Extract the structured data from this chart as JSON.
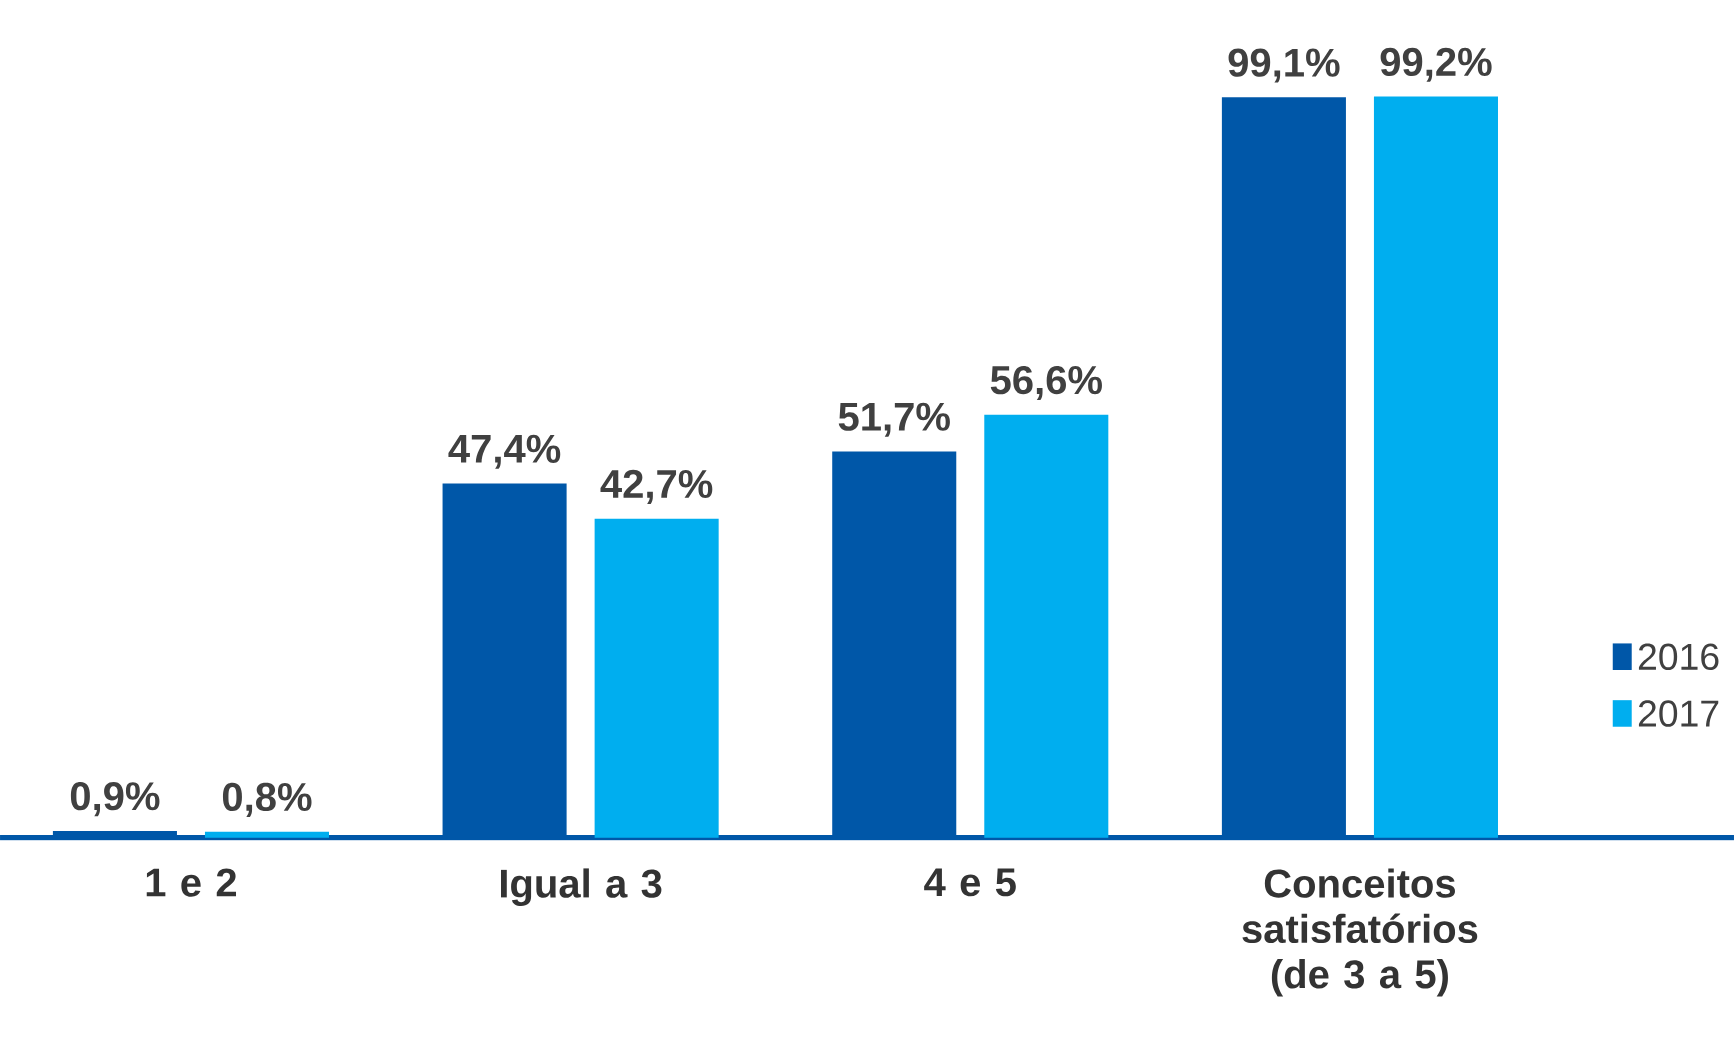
{
  "chart_data": {
    "type": "bar",
    "categories": [
      "1 e 2",
      "Igual a 3",
      "4 e 5",
      "Conceitos satisfatórios (de 3 a 5)"
    ],
    "series": [
      {
        "name": "2016",
        "color": "#0057a8",
        "values": [
          0.9,
          47.4,
          51.7,
          99.1
        ],
        "value_labels": [
          "0,9%",
          "47,4%",
          "51,7%",
          "99,1%"
        ]
      },
      {
        "name": "2017",
        "color": "#00aeef",
        "values": [
          0.8,
          42.7,
          56.6,
          99.2
        ],
        "value_labels": [
          "0,8%",
          "42,7%",
          "56,6%",
          "99,2%"
        ]
      }
    ],
    "legend": "right"
  }
}
